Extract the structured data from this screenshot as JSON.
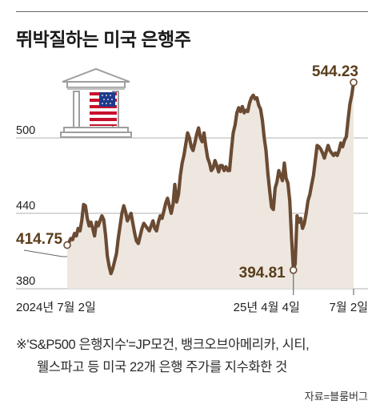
{
  "title": "뛰박질하는 미국 은행주",
  "chart_data": {
    "type": "line",
    "title": "뛰박질하는 미국 은행주",
    "ylim": [
      380,
      560
    ],
    "y_ticks": [
      380,
      440,
      500
    ],
    "y_tick_labels": [
      "380",
      "440",
      "500"
    ],
    "x_tick_labels": [
      "2024년 7월 2일",
      "25년 4월 4일",
      "7월 2일"
    ],
    "grid": true,
    "series": [
      {
        "values": [
          414.75,
          417,
          420,
          419,
          424,
          422,
          428,
          426,
          434,
          447,
          446,
          436,
          430,
          433,
          428,
          422,
          433,
          430,
          434,
          438,
          435,
          423,
          406,
          398,
          392,
          396,
          402,
          408,
          420,
          430,
          440,
          446,
          441,
          434,
          437,
          440,
          432,
          424,
          418,
          416,
          422,
          428,
          432,
          430,
          428,
          426,
          430,
          434,
          428,
          426,
          433,
          438,
          436,
          442,
          448,
          452,
          446,
          440,
          447,
          463,
          449,
          455,
          470,
          480,
          486,
          495,
          504,
          500,
          493,
          490,
          496,
          503,
          508,
          500,
          497,
          504,
          493,
          484,
          480,
          474,
          476,
          482,
          478,
          473,
          478,
          478,
          474,
          477,
          474,
          474,
          490,
          504,
          510,
          520,
          524,
          521,
          525,
          520,
          522,
          521,
          528,
          532,
          534,
          531,
          532,
          526,
          523,
          514,
          500,
          490,
          472,
          458,
          445,
          443,
          460,
          465,
          474,
          470,
          466,
          480,
          468,
          464,
          450,
          420,
          394.81,
          400,
          438,
          433,
          436,
          428,
          432,
          440,
          450,
          455,
          463,
          470,
          482,
          494,
          493,
          491,
          488,
          484,
          489,
          494,
          490,
          488,
          486,
          488,
          486,
          490,
          496,
          493,
          498,
          501,
          515,
          527,
          534,
          544.23
        ],
        "start_value": "414.75",
        "low_value": "394.81",
        "end_value": "544.23",
        "low_index": 124
      }
    ]
  },
  "footnote": {
    "line1": "※'S&P500 은행지수'=JP모건, 뱅크오브아메리카, 시티,",
    "line2": "웰스파고 등 미국 22개 은행 주가를 지수화한 것"
  },
  "source": "자료=블룸버그",
  "colors": {
    "line": "#6b4b33",
    "area": "#ede7e0",
    "label": "#5a3d1c",
    "flag_red": "#c8102e",
    "flag_blue": "#1f3a8a"
  }
}
